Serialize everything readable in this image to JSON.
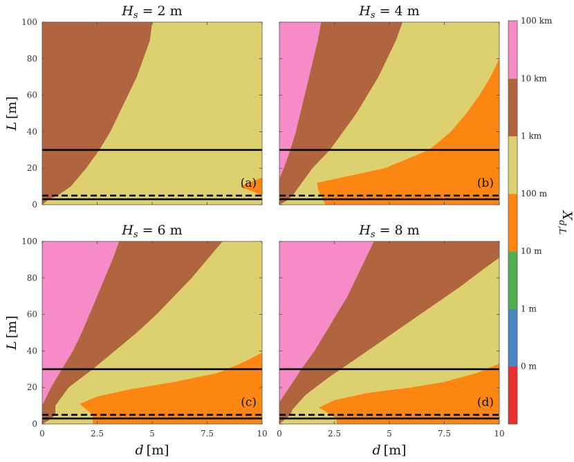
{
  "chart_data": {
    "type": "contour",
    "colorbar": {
      "title_main": "X",
      "title_sub": "d,L",
      "levels": [
        {
          "label": "0 m",
          "color": "#e8312f"
        },
        {
          "label": "1 m",
          "color": "#4a86c3"
        },
        {
          "label": "10 m",
          "color": "#52ad4e"
        },
        {
          "label": "100 m",
          "color": "#fd8612"
        },
        {
          "label": "1 km",
          "color": "#dcd06f"
        },
        {
          "label": "10 km",
          "color": "#b0653e"
        },
        {
          "label": "100 km",
          "color": "#f68bc8"
        }
      ]
    },
    "xlim": [
      0,
      10
    ],
    "ylim": [
      0,
      100
    ],
    "xticks": [
      0,
      2.5,
      5,
      7.5,
      10
    ],
    "xtick_labels": [
      "0",
      "2.5",
      "5",
      "7.5",
      "10"
    ],
    "yticks": [
      0,
      20,
      40,
      60,
      80,
      100
    ],
    "ytick_labels": [
      "0",
      "20",
      "40",
      "60",
      "80",
      "100"
    ],
    "xlabel_var": "d",
    "xlabel_unit": "[m]",
    "ylabel_var": "L",
    "ylabel_unit": "[m]",
    "panels": [
      {
        "id": "a",
        "tag": "(a)",
        "title_var": "H",
        "title_sub": "s",
        "title_value": " = 2 m",
        "reference_lines": [
          {
            "y": 30,
            "style": "solid"
          },
          {
            "y": 5,
            "style": "dashed"
          },
          {
            "y": 3,
            "style": "solid"
          }
        ],
        "boundaries": [
          {
            "between": [
              "10 km",
              "1 km"
            ],
            "points": [
              [
                5.0,
                100
              ],
              [
                4.9,
                90
              ],
              [
                4.6,
                80
              ],
              [
                4.3,
                70
              ],
              [
                3.9,
                60
              ],
              [
                3.5,
                50
              ],
              [
                3.1,
                40
              ],
              [
                2.6,
                30
              ],
              [
                2.0,
                20
              ],
              [
                1.3,
                10
              ],
              [
                0.7,
                5
              ],
              [
                0.3,
                3
              ],
              [
                0.0,
                0
              ]
            ]
          },
          {
            "between": [
              "1 km",
              "100 m"
            ],
            "points": [
              [
                17.0,
                100
              ],
              [
                16.8,
                90
              ],
              [
                16.6,
                80
              ],
              [
                16.3,
                70
              ],
              [
                15.9,
                60
              ],
              [
                15.4,
                50
              ],
              [
                14.8,
                40
              ],
              [
                13.6,
                30
              ],
              [
                11.0,
                20
              ],
              [
                9.0,
                10
              ],
              [
                10.0,
                5
              ],
              [
                13.0,
                3
              ],
              [
                13.0,
                0
              ]
            ]
          }
        ]
      },
      {
        "id": "b",
        "tag": "(b)",
        "title_var": "H",
        "title_sub": "s",
        "title_value": " = 4 m",
        "reference_lines": [
          {
            "y": 30,
            "style": "solid"
          },
          {
            "y": 5,
            "style": "dashed"
          },
          {
            "y": 3,
            "style": "solid"
          }
        ],
        "boundaries": [
          {
            "between": [
              "100 km",
              "10 km"
            ],
            "points": [
              [
                1.9,
                100
              ],
              [
                1.75,
                90
              ],
              [
                1.55,
                80
              ],
              [
                1.35,
                70
              ],
              [
                1.15,
                60
              ],
              [
                0.95,
                50
              ],
              [
                0.75,
                40
              ],
              [
                0.5,
                30
              ],
              [
                0.2,
                20
              ],
              [
                0.0,
                14
              ]
            ]
          },
          {
            "between": [
              "10 km",
              "1 km"
            ],
            "points": [
              [
                5.6,
                100
              ],
              [
                5.3,
                90
              ],
              [
                4.9,
                80
              ],
              [
                4.5,
                70
              ],
              [
                4.0,
                60
              ],
              [
                3.5,
                50
              ],
              [
                2.9,
                40
              ],
              [
                2.3,
                30
              ],
              [
                1.5,
                20
              ],
              [
                0.9,
                10
              ],
              [
                0.6,
                5
              ],
              [
                0.3,
                2
              ],
              [
                0.0,
                0
              ]
            ]
          },
          {
            "between": [
              "1 km",
              "100 m"
            ],
            "points": [
              [
                10.0,
                80
              ],
              [
                9.6,
                70
              ],
              [
                9.1,
                60
              ],
              [
                8.5,
                50
              ],
              [
                7.8,
                40
              ],
              [
                6.8,
                30
              ],
              [
                4.8,
                20
              ],
              [
                1.7,
                12
              ],
              [
                1.8,
                7
              ],
              [
                2.1,
                0
              ]
            ]
          }
        ]
      },
      {
        "id": "c",
        "tag": "(c)",
        "title_var": "H",
        "title_sub": "s",
        "title_value": " = 6 m",
        "reference_lines": [
          {
            "y": 30,
            "style": "solid"
          },
          {
            "y": 5,
            "style": "dashed"
          },
          {
            "y": 3,
            "style": "solid"
          }
        ],
        "boundaries": [
          {
            "between": [
              "100 km",
              "10 km"
            ],
            "points": [
              [
                3.5,
                100
              ],
              [
                3.2,
                90
              ],
              [
                2.85,
                80
              ],
              [
                2.5,
                70
              ],
              [
                2.15,
                60
              ],
              [
                1.8,
                50
              ],
              [
                1.4,
                40
              ],
              [
                0.9,
                30
              ],
              [
                0.4,
                20
              ],
              [
                0.0,
                10
              ]
            ]
          },
          {
            "between": [
              "10 km",
              "1 km"
            ],
            "points": [
              [
                8.2,
                100
              ],
              [
                7.5,
                90
              ],
              [
                6.8,
                80
              ],
              [
                6.0,
                70
              ],
              [
                5.2,
                60
              ],
              [
                4.3,
                50
              ],
              [
                3.3,
                40
              ],
              [
                2.3,
                30
              ],
              [
                1.2,
                20
              ],
              [
                0.6,
                10
              ],
              [
                0.6,
                5
              ],
              [
                0.3,
                2
              ],
              [
                0.0,
                0
              ]
            ]
          },
          {
            "between": [
              "1 km",
              "100 m"
            ],
            "points": [
              [
                10.0,
                39
              ],
              [
                9.0,
                33
              ],
              [
                8.0,
                28
              ],
              [
                6.0,
                23
              ],
              [
                4.0,
                19
              ],
              [
                2.5,
                15
              ],
              [
                1.7,
                11
              ],
              [
                2.0,
                8
              ],
              [
                2.3,
                5
              ],
              [
                2.3,
                0
              ]
            ]
          }
        ]
      },
      {
        "id": "d",
        "tag": "(d)",
        "title_var": "H",
        "title_sub": "s",
        "title_value": " = 8 m",
        "reference_lines": [
          {
            "y": 30,
            "style": "solid"
          },
          {
            "y": 5,
            "style": "dashed"
          },
          {
            "y": 3,
            "style": "solid"
          }
        ],
        "boundaries": [
          {
            "between": [
              "100 km",
              "10 km"
            ],
            "points": [
              [
                4.3,
                100
              ],
              [
                3.9,
                90
              ],
              [
                3.5,
                80
              ],
              [
                3.1,
                70
              ],
              [
                2.6,
                60
              ],
              [
                2.1,
                50
              ],
              [
                1.6,
                40
              ],
              [
                1.0,
                30
              ],
              [
                0.45,
                20
              ],
              [
                0.0,
                12
              ]
            ]
          },
          {
            "between": [
              "10 km",
              "1 km"
            ],
            "points": [
              [
                10.0,
                91
              ],
              [
                9.3,
                85
              ],
              [
                8.2,
                75
              ],
              [
                7.0,
                65
              ],
              [
                5.8,
                55
              ],
              [
                4.6,
                45
              ],
              [
                3.4,
                35
              ],
              [
                2.3,
                26
              ],
              [
                1.2,
                16
              ],
              [
                0.6,
                8
              ],
              [
                0.5,
                5
              ],
              [
                0.2,
                2
              ],
              [
                0.0,
                0
              ]
            ]
          },
          {
            "between": [
              "1 km",
              "100 m"
            ],
            "points": [
              [
                10.0,
                33
              ],
              [
                9.0,
                28
              ],
              [
                7.5,
                23
              ],
              [
                6.0,
                20
              ],
              [
                4.0,
                17
              ],
              [
                2.5,
                13
              ],
              [
                1.8,
                9
              ],
              [
                2.2,
                6
              ],
              [
                2.6,
                3
              ],
              [
                2.6,
                0
              ]
            ]
          }
        ]
      }
    ]
  }
}
